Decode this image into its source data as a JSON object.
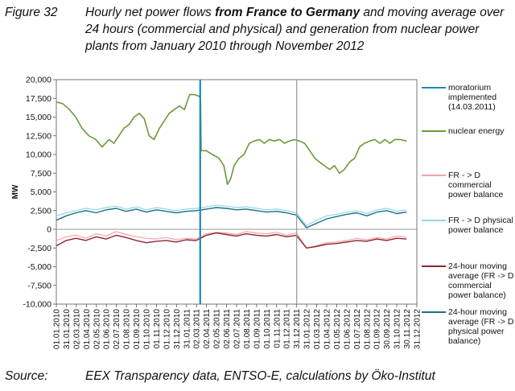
{
  "caption": {
    "figure_label": "Figure 32",
    "title_pre": "Hourly net power flows ",
    "title_bold": "from France to Germany",
    "title_post": " and moving average over 24 hours (commercial and physical) and generation from nuclear power plants from January 2010 through November 2012"
  },
  "source": {
    "label": "Source:",
    "text": "EEX Transparency data, ENTSO-E, calculations by Öko-Institut"
  },
  "chart_data": {
    "type": "line",
    "ylabel": "MW",
    "ylim": [
      -10000,
      20000
    ],
    "yticks": [
      -10000,
      -7500,
      -5000,
      -2500,
      0,
      2500,
      5000,
      7500,
      10000,
      12500,
      15000,
      17500,
      20000
    ],
    "ytick_labels": [
      "-10,000",
      "-7,500",
      "-5,000",
      "-2,500",
      "0",
      "2,500",
      "5,000",
      "7,500",
      "10,000",
      "12,500",
      "15,000",
      "17,500",
      "20,000"
    ],
    "xlim": [
      "2010-01-01",
      "2012-12-31"
    ],
    "xtick_labels": [
      "01.01.2010",
      "31.01.2010",
      "02.03.2010",
      "01.04.2010",
      "02.05.2010",
      "01.06.2010",
      "02.07.2010",
      "01.08.2010",
      "01.09.2010",
      "01.10.2010",
      "01.11.2010",
      "01.12.2010",
      "31.12.2010",
      "31.01.2011",
      "02.03.2011",
      "02.04.2011",
      "02.05.2011",
      "02.06.2011",
      "02.07.2011",
      "01.08.2011",
      "01.09.2011",
      "01.10.2011",
      "01.11.2011",
      "01.12.2011",
      "31.12.2011",
      "31.01.2012",
      "01.03.2012",
      "01.04.2012",
      "01.05.2012",
      "01.06.2012",
      "01.07.2012",
      "01.08.2012",
      "01.09.2012",
      "30.09.2012",
      "31.10.2012",
      "30.11.2012",
      "31.12.2012"
    ],
    "grid": false,
    "legend_position": "right",
    "vertical_lines": [
      {
        "x": "2011-03-14",
        "label": "moratorium implemented (14.03.2011)",
        "color": "#1a8ab8"
      },
      {
        "x": "2012-01-01",
        "label": "",
        "color": "#9a9a9a"
      }
    ],
    "series": [
      {
        "name": "nuclear energy",
        "color": "#6a9a3a",
        "x": [
          "2010-01-01",
          "2010-01-20",
          "2010-02-10",
          "2010-03-01",
          "2010-03-20",
          "2010-04-10",
          "2010-05-01",
          "2010-05-20",
          "2010-06-10",
          "2010-06-25",
          "2010-07-10",
          "2010-07-25",
          "2010-08-10",
          "2010-08-25",
          "2010-09-10",
          "2010-09-25",
          "2010-10-10",
          "2010-10-25",
          "2010-11-10",
          "2010-11-25",
          "2010-12-10",
          "2010-12-25",
          "2011-01-10",
          "2011-01-25",
          "2011-02-10",
          "2011-02-25",
          "2011-03-10",
          "2011-03-15",
          "2011-03-17",
          "2011-04-01",
          "2011-04-20",
          "2011-05-10",
          "2011-05-25",
          "2011-06-05",
          "2011-06-15",
          "2011-06-25",
          "2011-07-10",
          "2011-07-25",
          "2011-08-10",
          "2011-08-25",
          "2011-09-10",
          "2011-09-25",
          "2011-10-10",
          "2011-10-25",
          "2011-11-10",
          "2011-11-25",
          "2011-12-10",
          "2011-12-25",
          "2012-01-10",
          "2012-01-25",
          "2012-02-10",
          "2012-02-25",
          "2012-03-10",
          "2012-03-25",
          "2012-04-10",
          "2012-04-25",
          "2012-05-10",
          "2012-05-25",
          "2012-06-10",
          "2012-06-25",
          "2012-07-10",
          "2012-07-25",
          "2012-08-10",
          "2012-08-25",
          "2012-09-10",
          "2012-09-25",
          "2012-10-10",
          "2012-10-25",
          "2012-11-10",
          "2012-11-30"
        ],
        "values": [
          17000,
          16800,
          16000,
          15000,
          13500,
          12500,
          12000,
          11000,
          12000,
          11500,
          12500,
          13500,
          14000,
          15000,
          15500,
          14800,
          12500,
          12000,
          13500,
          14500,
          15500,
          16000,
          16500,
          16000,
          18000,
          18000,
          17800,
          17500,
          10500,
          10500,
          10000,
          9500,
          8500,
          6000,
          6800,
          8500,
          9500,
          10000,
          11500,
          11800,
          12000,
          11500,
          12000,
          11800,
          12000,
          11500,
          11800,
          12000,
          11800,
          11500,
          10500,
          9500,
          9000,
          8500,
          8000,
          8500,
          7500,
          8000,
          9000,
          9500,
          11000,
          11500,
          11800,
          12000,
          11500,
          12000,
          11500,
          12000,
          12000,
          11800
        ]
      },
      {
        "name": "FR - > D commercial power balance",
        "color": "#f4a3a8",
        "x": [
          "2010-01-01",
          "2010-01-31",
          "2010-03-02",
          "2010-04-01",
          "2010-05-02",
          "2010-06-01",
          "2010-07-02",
          "2010-08-01",
          "2010-09-01",
          "2010-10-01",
          "2010-11-01",
          "2010-12-01",
          "2010-12-31",
          "2011-01-31",
          "2011-03-02",
          "2011-04-02",
          "2011-05-02",
          "2011-06-02",
          "2011-07-02",
          "2011-08-01",
          "2011-09-01",
          "2011-10-01",
          "2011-11-01",
          "2011-12-01",
          "2011-12-31",
          "2012-01-31",
          "2012-03-01",
          "2012-04-01",
          "2012-05-01",
          "2012-06-01",
          "2012-07-01",
          "2012-08-01",
          "2012-09-01",
          "2012-09-30",
          "2012-10-31",
          "2012-11-30"
        ],
        "values": [
          -1500,
          -1000,
          -800,
          -1200,
          -600,
          -900,
          -300,
          -700,
          -1000,
          -1200,
          -1300,
          -1100,
          -1400,
          -1200,
          -1300,
          -600,
          -400,
          -500,
          -700,
          -300,
          -500,
          -600,
          -400,
          -800,
          -500,
          -2500,
          -2200,
          -1800,
          -1700,
          -1500,
          -1200,
          -1400,
          -1100,
          -1300,
          -900,
          -1000
        ]
      },
      {
        "name": "FR - > D physical power balance",
        "color": "#8fd8e6",
        "x": [
          "2010-01-01",
          "2010-01-31",
          "2010-03-02",
          "2010-04-01",
          "2010-05-02",
          "2010-06-01",
          "2010-07-02",
          "2010-08-01",
          "2010-09-01",
          "2010-10-01",
          "2010-11-01",
          "2010-12-01",
          "2010-12-31",
          "2011-01-31",
          "2011-03-02",
          "2011-04-02",
          "2011-05-02",
          "2011-06-02",
          "2011-07-02",
          "2011-08-01",
          "2011-09-01",
          "2011-10-01",
          "2011-11-01",
          "2011-12-01",
          "2011-12-31",
          "2012-01-31",
          "2012-03-01",
          "2012-04-01",
          "2012-05-01",
          "2012-06-01",
          "2012-07-01",
          "2012-08-01",
          "2012-09-01",
          "2012-09-30",
          "2012-10-31",
          "2012-11-30"
        ],
        "values": [
          1800,
          2200,
          2500,
          2800,
          2600,
          2900,
          3100,
          2700,
          3000,
          2600,
          2900,
          2700,
          2500,
          2700,
          2800,
          3000,
          3200,
          3100,
          2900,
          3000,
          2800,
          2600,
          2700,
          2500,
          2200,
          500,
          1200,
          1800,
          2000,
          2300,
          2500,
          2100,
          2600,
          2800,
          2400,
          2600
        ]
      },
      {
        "name": "24-hour moving average (FR -> D commercial power balance)",
        "color": "#8e2430",
        "x": [
          "2010-01-01",
          "2010-01-31",
          "2010-03-02",
          "2010-04-01",
          "2010-05-02",
          "2010-06-01",
          "2010-07-02",
          "2010-08-01",
          "2010-09-01",
          "2010-10-01",
          "2010-11-01",
          "2010-12-01",
          "2010-12-31",
          "2011-01-31",
          "2011-03-02",
          "2011-04-02",
          "2011-05-02",
          "2011-06-02",
          "2011-07-02",
          "2011-08-01",
          "2011-09-01",
          "2011-10-01",
          "2011-11-01",
          "2011-12-01",
          "2011-12-31",
          "2012-01-31",
          "2012-03-01",
          "2012-04-01",
          "2012-05-01",
          "2012-06-01",
          "2012-07-01",
          "2012-08-01",
          "2012-09-01",
          "2012-09-30",
          "2012-10-31",
          "2012-11-30"
        ],
        "values": [
          -2200,
          -1500,
          -1200,
          -1500,
          -1000,
          -1300,
          -800,
          -1100,
          -1500,
          -1800,
          -1600,
          -1500,
          -1700,
          -1400,
          -1500,
          -800,
          -500,
          -700,
          -900,
          -600,
          -800,
          -900,
          -700,
          -1000,
          -800,
          -2500,
          -2300,
          -2000,
          -1900,
          -1700,
          -1500,
          -1600,
          -1300,
          -1500,
          -1200,
          -1300
        ]
      },
      {
        "name": "24-hour moving average (FR -> D physical power balance)",
        "color": "#1f6f80",
        "x": [
          "2010-01-01",
          "2010-01-31",
          "2010-03-02",
          "2010-04-01",
          "2010-05-02",
          "2010-06-01",
          "2010-07-02",
          "2010-08-01",
          "2010-09-01",
          "2010-10-01",
          "2010-11-01",
          "2010-12-01",
          "2010-12-31",
          "2011-01-31",
          "2011-03-02",
          "2011-04-02",
          "2011-05-02",
          "2011-06-02",
          "2011-07-02",
          "2011-08-01",
          "2011-09-01",
          "2011-10-01",
          "2011-11-01",
          "2011-12-01",
          "2011-12-31",
          "2012-01-31",
          "2012-03-01",
          "2012-04-01",
          "2012-05-01",
          "2012-06-01",
          "2012-07-01",
          "2012-08-01",
          "2012-09-01",
          "2012-09-30",
          "2012-10-31",
          "2012-11-30"
        ],
        "values": [
          1200,
          1800,
          2200,
          2500,
          2200,
          2600,
          2800,
          2400,
          2700,
          2300,
          2600,
          2400,
          2200,
          2400,
          2500,
          2700,
          2900,
          2800,
          2600,
          2700,
          2500,
          2300,
          2400,
          2200,
          1900,
          200,
          800,
          1400,
          1700,
          2000,
          2200,
          1800,
          2300,
          2500,
          2100,
          2300
        ]
      }
    ]
  },
  "legend": {
    "items": [
      {
        "label": "moratorium implemented (14.03.2011)",
        "color": "#1a8ab8"
      },
      {
        "label": "nuclear energy",
        "color": "#6a9a3a"
      },
      {
        "label": "FR - > D commercial power balance",
        "color": "#f4a3a8"
      },
      {
        "label": "FR - > D physical power balance",
        "color": "#8fd8e6"
      },
      {
        "label": "24-hour moving average (FR -> D commercial power balance)",
        "color": "#8e2430"
      },
      {
        "label": "24-hour moving average (FR -> D physical power balance)",
        "color": "#1f6f80"
      }
    ]
  }
}
